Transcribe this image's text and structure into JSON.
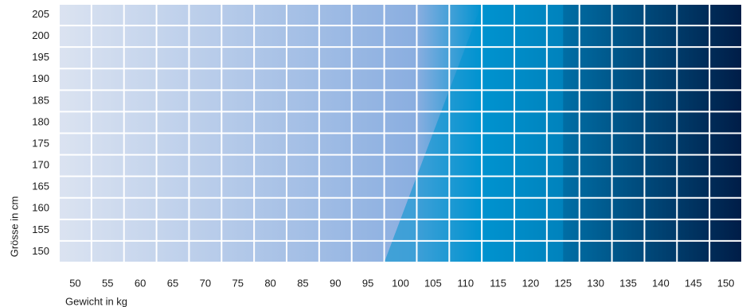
{
  "chart_data": {
    "type": "heatmap",
    "xlabel": "Gewicht in kg",
    "ylabel": "Grösse in cm",
    "x": [
      50,
      55,
      60,
      65,
      70,
      75,
      80,
      85,
      90,
      95,
      100,
      105,
      110,
      115,
      120,
      125,
      130,
      135,
      140,
      145,
      150
    ],
    "y": [
      150,
      155,
      160,
      165,
      170,
      175,
      180,
      185,
      190,
      195,
      200,
      205
    ],
    "grid": true,
    "colors": {
      "light": "#dbe3f1",
      "mid": "#8aaee0",
      "bright": "#0093d0",
      "dark": "#001d47",
      "gridline": "#ffffff"
    }
  }
}
